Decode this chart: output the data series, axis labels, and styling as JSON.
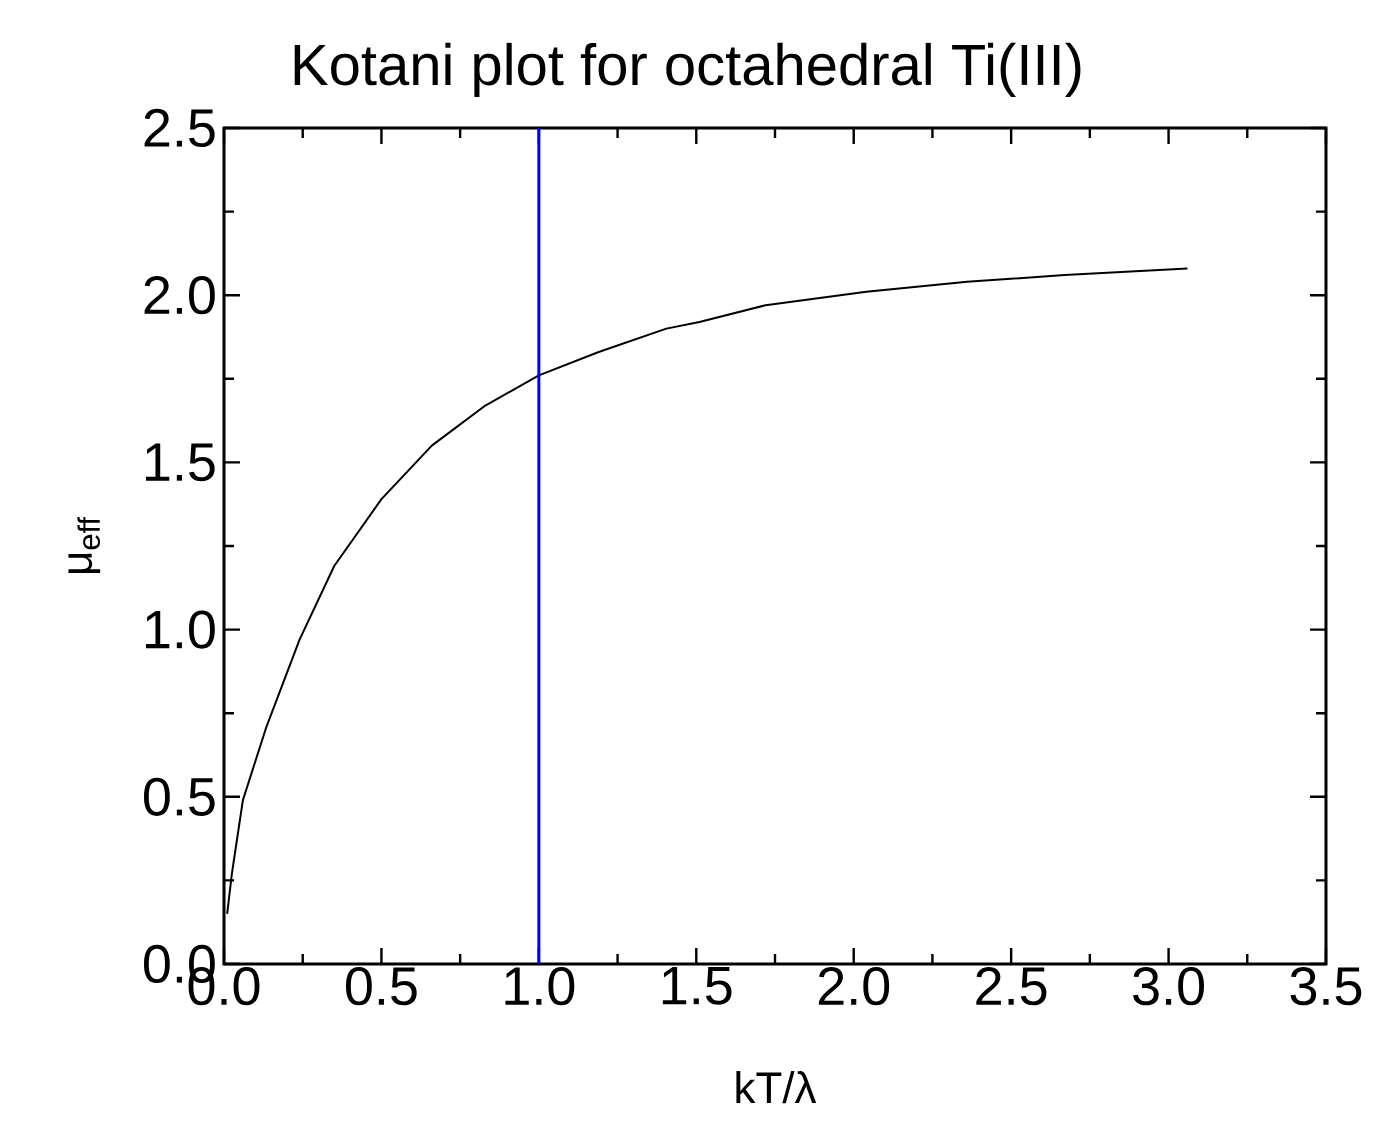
{
  "chart_data": {
    "type": "line",
    "title": "Kotani plot for octahedral Ti(III)",
    "xlabel": "kT/λ",
    "ylabel": "μ$_{eff}$",
    "xlim": [
      0,
      3.5
    ],
    "ylim": [
      0,
      2.5
    ],
    "xticks": [
      {
        "value": 0,
        "label": "0.0"
      },
      0.5,
      {
        "value": 1,
        "label": "1.0"
      },
      1.5,
      {
        "value": 2,
        "label": "2.0"
      },
      2.5,
      {
        "value": 3,
        "label": "3.0"
      },
      3.5
    ],
    "yticks": [
      {
        "value": 0,
        "label": "0.0"
      },
      0.5,
      {
        "value": 1,
        "label": "1.0"
      },
      1.5,
      {
        "value": 2,
        "label": "2.0"
      },
      2.5
    ],
    "grid": false,
    "marker": "none",
    "line_style": "solid",
    "series": [
      {
        "color": "#000000",
        "x": [
          0.01,
          0.025,
          0.06,
          0.135,
          0.24,
          0.35,
          0.5,
          0.66,
          0.83,
          1.0,
          1.19,
          1.405,
          1.51,
          1.72,
          2.04,
          2.36,
          2.67,
          3.06
        ],
        "values": [
          0.15,
          0.27,
          0.49,
          0.71,
          0.97,
          1.19,
          1.39,
          1.55,
          1.67,
          1.76,
          1.83,
          1.9,
          1.92,
          1.97,
          2.01,
          2.04,
          2.06,
          2.08
        ]
      }
    ],
    "ref_lines": [
      {
        "axis": "x",
        "value": 1.0,
        "color": "#0000ff",
        "line_style": "solid"
      }
    ]
  }
}
